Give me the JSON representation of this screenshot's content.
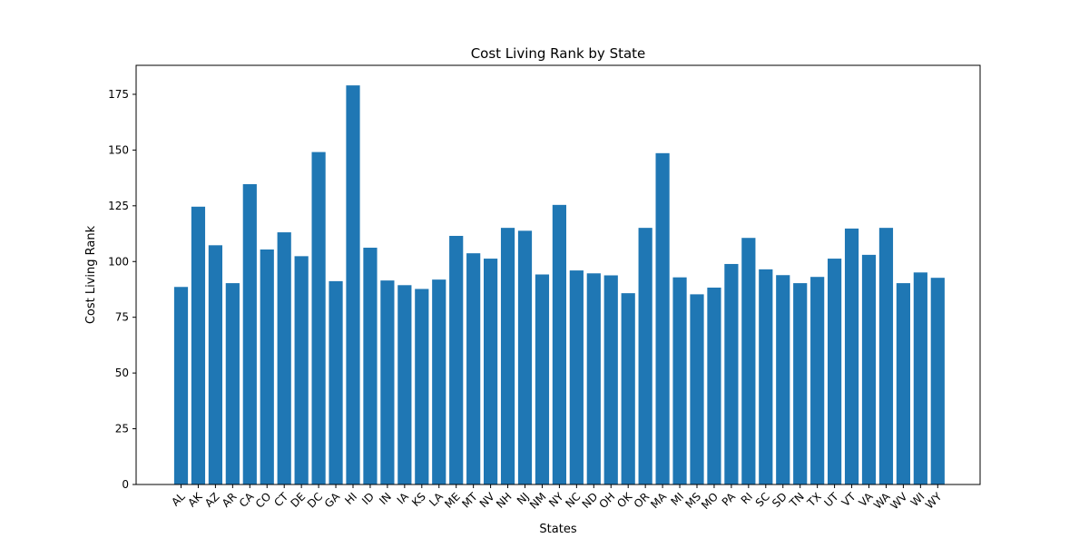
{
  "chart_data": {
    "type": "bar",
    "title": "Cost Living Rank by State",
    "xlabel": "States",
    "ylabel": "Cost Living Rank",
    "ylim": [
      0,
      188
    ],
    "yticks": [
      0,
      25,
      50,
      75,
      100,
      125,
      150,
      175
    ],
    "grid": false,
    "bar_color": "#1f77b4",
    "categories": [
      "AL",
      "AK",
      "AZ",
      "AR",
      "CA",
      "CO",
      "CT",
      "DE",
      "DC",
      "GA",
      "HI",
      "ID",
      "IN",
      "IA",
      "KS",
      "LA",
      "ME",
      "MT",
      "NV",
      "NH",
      "NJ",
      "NM",
      "NY",
      "NC",
      "ND",
      "OH",
      "OK",
      "OR",
      "MA",
      "MI",
      "MS",
      "MO",
      "PA",
      "RI",
      "SC",
      "SD",
      "TN",
      "TX",
      "UT",
      "VT",
      "VA",
      "WA",
      "WV",
      "WI",
      "WY"
    ],
    "values": [
      88.6,
      124.6,
      107.3,
      90.3,
      134.7,
      105.4,
      113.1,
      102.4,
      149.1,
      91.2,
      179.0,
      106.2,
      91.5,
      89.4,
      87.7,
      91.9,
      111.5,
      103.7,
      101.3,
      115.1,
      113.8,
      94.2,
      125.4,
      96.0,
      94.7,
      93.8,
      85.8,
      115.1,
      148.6,
      92.9,
      85.3,
      88.3,
      98.9,
      110.6,
      96.5,
      93.9,
      90.3,
      93.1,
      101.3,
      114.8,
      103.0,
      115.1,
      90.3,
      95.1,
      92.7
    ]
  }
}
